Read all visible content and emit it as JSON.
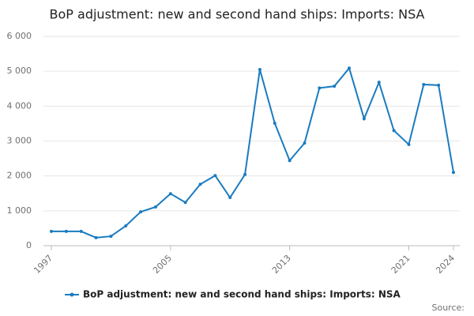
{
  "chart_data": {
    "type": "line",
    "title": "BoP adjustment: new and second hand ships: Imports: NSA",
    "x": [
      1997,
      1998,
      1999,
      2000,
      2001,
      2002,
      2003,
      2004,
      2005,
      2006,
      2007,
      2008,
      2009,
      2010,
      2011,
      2012,
      2013,
      2014,
      2015,
      2016,
      2017,
      2018,
      2019,
      2020,
      2021,
      2022,
      2023,
      2024
    ],
    "series": [
      {
        "name": "BoP adjustment: new and second hand ships: Imports: NSA",
        "color": "#1a7bbf",
        "values": [
          410,
          410,
          410,
          230,
          270,
          570,
          970,
          1110,
          1490,
          1240,
          1760,
          2010,
          1380,
          2040,
          5050,
          3510,
          2440,
          2940,
          4520,
          4570,
          5090,
          3640,
          4680,
          3300,
          2900,
          4620,
          4600,
          2100
        ]
      }
    ],
    "xlim": [
      1997,
      2024
    ],
    "xticks": [
      1997,
      2005,
      2013,
      2021,
      2024
    ],
    "ylim": [
      0,
      6000
    ],
    "yticks": [
      0,
      {
        "value": 1000,
        "label": "1 000"
      },
      {
        "value": 2000,
        "label": "2 000"
      },
      {
        "value": 3000,
        "label": "3 000"
      },
      {
        "value": 4000,
        "label": "4 000"
      },
      {
        "value": 5000,
        "label": "5 000"
      },
      {
        "value": 6000,
        "label": "6 000"
      }
    ],
    "grid": true,
    "legend": "bottom",
    "source": "Source:"
  }
}
